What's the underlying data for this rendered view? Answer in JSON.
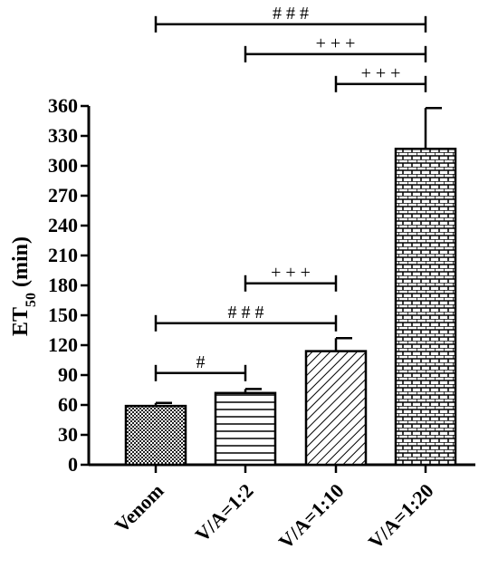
{
  "chart_data": {
    "type": "bar",
    "ylabel": "ET50 (min)",
    "ylabel_main": "ET",
    "ylabel_sub": "50",
    "ylabel_unit": " (min)",
    "ylim": [
      0,
      360
    ],
    "yticks": [
      0,
      30,
      60,
      90,
      120,
      150,
      180,
      210,
      240,
      270,
      300,
      330,
      360
    ],
    "categories": [
      "Venom",
      "V/A=1:2",
      "V/A=1:10",
      "V/A=1:20"
    ],
    "values": [
      59,
      72,
      114,
      317
    ],
    "errors": [
      3,
      4,
      13,
      41
    ],
    "patterns": [
      "checker",
      "horizontal-lines",
      "diagonal-hatch",
      "brick"
    ],
    "grid": false,
    "significance": [
      {
        "from": 0,
        "to": 1,
        "label": "#",
        "y": 92
      },
      {
        "from": 0,
        "to": 2,
        "label": "# # #",
        "y": 142
      },
      {
        "from": 1,
        "to": 2,
        "label": "+ + +",
        "y": 182
      },
      {
        "from": 2,
        "to": 3,
        "label": "+ + +",
        "y": 382
      },
      {
        "from": 1,
        "to": 3,
        "label": "+ + +",
        "y": 412
      },
      {
        "from": 0,
        "to": 3,
        "label": "# # #",
        "y": 442
      }
    ]
  }
}
